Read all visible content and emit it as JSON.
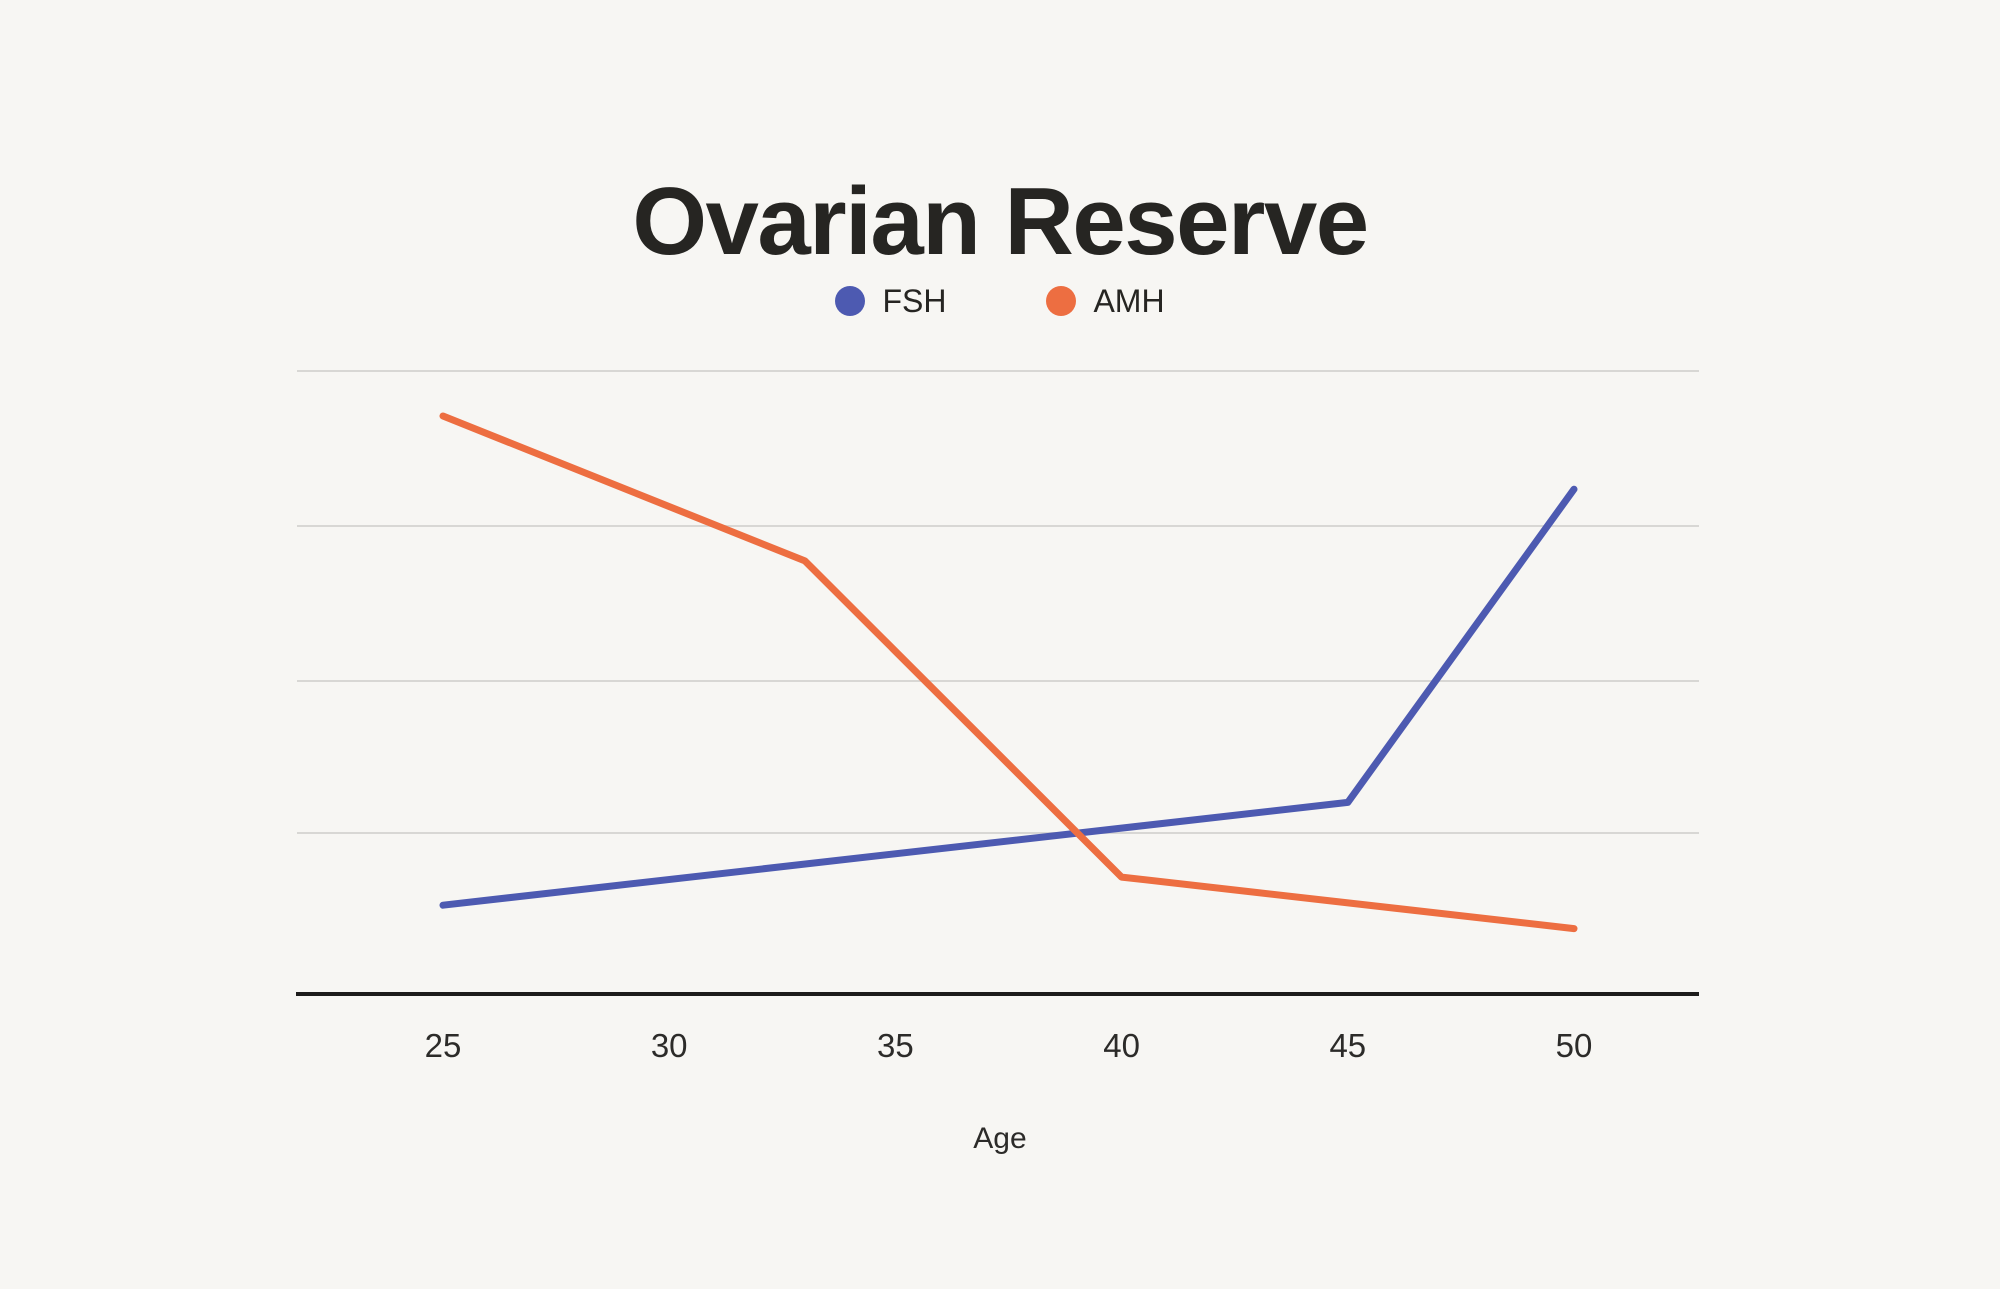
{
  "page": {
    "background_color": "#f7f6f3"
  },
  "chart_data": {
    "type": "line",
    "title": "Ovarian Reserve",
    "xlabel": "Age",
    "ylabel": "",
    "x_tick_labels": [
      "25",
      "30",
      "35",
      "40",
      "45",
      "50"
    ],
    "x_ticks": [
      25,
      30,
      35,
      40,
      45,
      50
    ],
    "y_axis": {
      "tick_labels_visible": false,
      "gridline_count": 4,
      "note": "horizontal gridlines only, unlabeled; values below are in gridline units (baseline=0, each gridline=+1)",
      "ylim": [
        0,
        4.3
      ]
    },
    "grid": "horizontal",
    "legend": {
      "position": "top-center",
      "entries": [
        "FSH",
        "AMH"
      ]
    },
    "series": [
      {
        "name": "FSH",
        "color": "#4d5ab1",
        "points": [
          [
            25,
            0.57
          ],
          [
            45,
            1.23
          ],
          [
            50,
            3.24
          ]
        ]
      },
      {
        "name": "AMH",
        "color": "#ed6e41",
        "points": [
          [
            25,
            3.71
          ],
          [
            33,
            2.78
          ],
          [
            40,
            0.75
          ],
          [
            50,
            0.42
          ]
        ]
      }
    ],
    "axis_color": "#1d1c1b",
    "gridline_color": "#d8d7d4",
    "line_width": 7
  }
}
